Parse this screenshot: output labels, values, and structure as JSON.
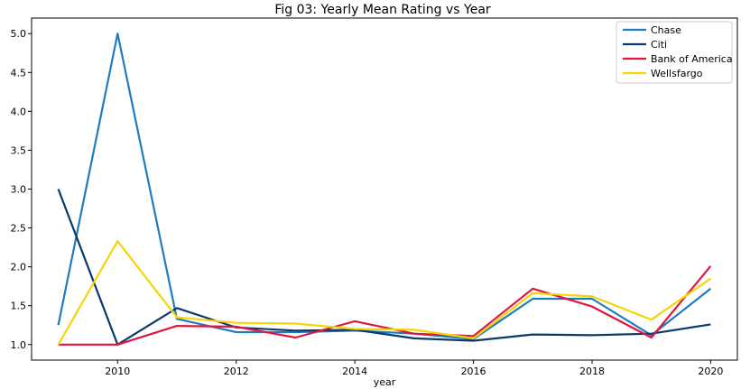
{
  "chart_data": {
    "type": "line",
    "title": "Fig 03: Yearly Mean Rating vs Year",
    "xlabel": "year",
    "ylabel": "",
    "xlim": [
      2008.55,
      2020.45
    ],
    "ylim": [
      0.8,
      5.2
    ],
    "x": [
      2009,
      2010,
      2011,
      2012,
      2013,
      2014,
      2015,
      2016,
      2017,
      2018,
      2019,
      2020
    ],
    "x_ticks": [
      2010,
      2012,
      2014,
      2016,
      2018,
      2020
    ],
    "x_tick_labels": [
      "2010",
      "2012",
      "2014",
      "2016",
      "2018",
      "2020"
    ],
    "y_ticks": [
      1.0,
      1.5,
      2.0,
      2.5,
      3.0,
      3.5,
      4.0,
      4.5,
      5.0
    ],
    "y_tick_labels": [
      "1.0",
      "1.5",
      "2.0",
      "2.5",
      "3.0",
      "3.5",
      "4.0",
      "4.5",
      "5.0"
    ],
    "grid": false,
    "legend_position": "top-right",
    "series": [
      {
        "name": "Chase",
        "color": "#1f7bc1",
        "values": [
          1.25,
          5.0,
          1.33,
          1.16,
          1.16,
          1.18,
          1.14,
          1.07,
          1.59,
          1.59,
          1.12,
          1.72
        ]
      },
      {
        "name": "Citi",
        "color": "#0a3a6b",
        "values": [
          3.0,
          1.0,
          1.47,
          1.22,
          1.18,
          1.19,
          1.08,
          1.05,
          1.13,
          1.12,
          1.14,
          1.26
        ]
      },
      {
        "name": "Bank of America",
        "color": "#e0163c",
        "values": [
          1.0,
          1.0,
          1.24,
          1.23,
          1.09,
          1.3,
          1.14,
          1.11,
          1.72,
          1.49,
          1.09,
          2.01
        ]
      },
      {
        "name": "Wellsfargo",
        "color": "#f5d409",
        "values": [
          1.0,
          2.33,
          1.35,
          1.28,
          1.27,
          1.2,
          1.19,
          1.08,
          1.66,
          1.62,
          1.32,
          1.85
        ]
      }
    ]
  }
}
